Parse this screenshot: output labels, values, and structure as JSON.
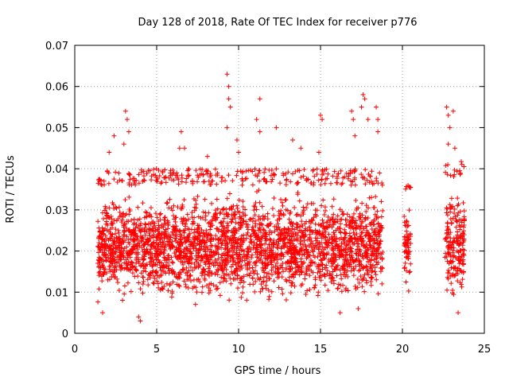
{
  "chart_data": {
    "type": "scatter",
    "title": "Day 128 of 2018, Rate Of TEC Index for receiver p776",
    "xlabel": "GPS time / hours",
    "ylabel": "ROTI / TECUs",
    "xlim": [
      0,
      25
    ],
    "ylim": [
      0,
      0.07
    ],
    "x_ticks": [
      "0",
      "5",
      "10",
      "15",
      "20",
      "25"
    ],
    "y_ticks": [
      "0",
      "0.01",
      "0.02",
      "0.03",
      "0.04",
      "0.05",
      "0.06",
      "0.07"
    ],
    "grid": true,
    "grid_style": "dotted",
    "legend": "none",
    "marker": "plus",
    "point_color": "#ff0000",
    "series": [
      {
        "description": "Dense band of ROTI values between ~0.005 and ~0.04 TECU, with outliers; coverage ~1.5-18.8 h, a sparse cluster at ~20.3 h, and ~22.6-23.8 h",
        "segments": [
          {
            "x_range": [
              1.4,
              18.8
            ],
            "y_core": [
              0.006,
              0.036
            ],
            "y_max": 0.04
          },
          {
            "x_range": [
              20.1,
              20.5
            ],
            "y_core": [
              0.009,
              0.035
            ],
            "y_max": 0.036
          },
          {
            "x_range": [
              22.6,
              23.8
            ],
            "y_core": [
              0.006,
              0.038
            ],
            "y_max": 0.042
          }
        ],
        "points": [
          [
            3.1,
            0.054
          ],
          [
            3.2,
            0.052
          ],
          [
            3.3,
            0.049
          ],
          [
            3.0,
            0.046
          ],
          [
            2.4,
            0.048
          ],
          [
            2.1,
            0.044
          ],
          [
            6.5,
            0.049
          ],
          [
            6.4,
            0.045
          ],
          [
            6.7,
            0.045
          ],
          [
            8.1,
            0.043
          ],
          [
            9.3,
            0.063
          ],
          [
            9.4,
            0.06
          ],
          [
            9.4,
            0.057
          ],
          [
            9.5,
            0.055
          ],
          [
            9.3,
            0.05
          ],
          [
            9.9,
            0.047
          ],
          [
            10.0,
            0.044
          ],
          [
            11.1,
            0.052
          ],
          [
            11.3,
            0.049
          ],
          [
            11.3,
            0.057
          ],
          [
            12.3,
            0.05
          ],
          [
            13.3,
            0.047
          ],
          [
            13.8,
            0.045
          ],
          [
            15.0,
            0.053
          ],
          [
            15.1,
            0.052
          ],
          [
            14.9,
            0.044
          ],
          [
            16.9,
            0.054
          ],
          [
            17.0,
            0.052
          ],
          [
            17.1,
            0.048
          ],
          [
            17.6,
            0.058
          ],
          [
            17.7,
            0.057
          ],
          [
            17.5,
            0.055
          ],
          [
            17.9,
            0.052
          ],
          [
            18.4,
            0.055
          ],
          [
            18.5,
            0.052
          ],
          [
            18.5,
            0.049
          ],
          [
            22.7,
            0.055
          ],
          [
            22.8,
            0.053
          ],
          [
            22.9,
            0.05
          ],
          [
            23.1,
            0.054
          ],
          [
            23.2,
            0.045
          ],
          [
            22.8,
            0.046
          ],
          [
            4.0,
            0.003
          ],
          [
            3.9,
            0.004
          ],
          [
            1.7,
            0.005
          ],
          [
            16.2,
            0.005
          ],
          [
            17.3,
            0.006
          ],
          [
            23.4,
            0.005
          ]
        ]
      }
    ]
  }
}
